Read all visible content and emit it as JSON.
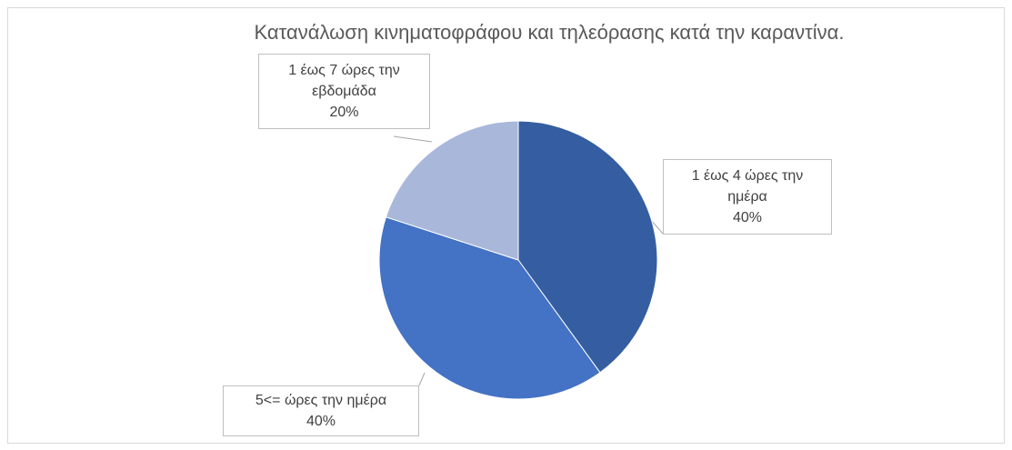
{
  "chart_data": {
    "type": "pie",
    "title": "Κατανάλωση κινηματοφράφου και τηλεόρασης κατά την καραντίνα.",
    "slices": [
      {
        "label": "1 έως 4 ώρες την ημέρα",
        "label_lines": [
          "1 έως 4 ώρες την",
          "ημέρα"
        ],
        "value": 40,
        "value_label": "40%",
        "color": "#345ea1"
      },
      {
        "label": "5<= ώρες την ημέρα",
        "label_lines": [
          "5<= ώρες την ημέρα"
        ],
        "value": 40,
        "value_label": "40%",
        "color": "#4472c4"
      },
      {
        "label": "1 έως 7 ώρες την εβδομάδα",
        "label_lines": [
          "1 έως 7 ώρες την",
          "εβδομάδα"
        ],
        "value": 20,
        "value_label": "20%",
        "color": "#a9b7db"
      }
    ],
    "legend": "none"
  }
}
